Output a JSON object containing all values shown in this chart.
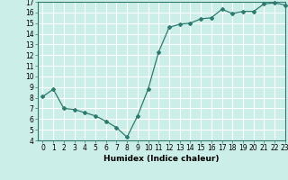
{
  "x": [
    0,
    1,
    2,
    3,
    4,
    5,
    6,
    7,
    8,
    9,
    10,
    11,
    12,
    13,
    14,
    15,
    16,
    17,
    18,
    19,
    20,
    21,
    22,
    23
  ],
  "y": [
    8.1,
    8.8,
    7.0,
    6.9,
    6.6,
    6.3,
    5.8,
    5.2,
    4.3,
    6.3,
    8.8,
    12.3,
    14.6,
    14.9,
    15.0,
    15.4,
    15.5,
    16.3,
    15.9,
    16.1,
    16.1,
    16.8,
    16.9,
    16.7
  ],
  "line_color": "#2d7a6e",
  "marker": "D",
  "markersize": 2.0,
  "bg_color": "#cceee8",
  "grid_color": "#ffffff",
  "xlabel": "Humidex (Indice chaleur)",
  "ylim": [
    4,
    17
  ],
  "xlim": [
    -0.5,
    23
  ],
  "yticks": [
    4,
    5,
    6,
    7,
    8,
    9,
    10,
    11,
    12,
    13,
    14,
    15,
    16,
    17
  ],
  "xticks": [
    0,
    1,
    2,
    3,
    4,
    5,
    6,
    7,
    8,
    9,
    10,
    11,
    12,
    13,
    14,
    15,
    16,
    17,
    18,
    19,
    20,
    21,
    22,
    23
  ],
  "tick_label_fontsize": 5.5,
  "xlabel_fontsize": 6.5,
  "linewidth": 0.9
}
